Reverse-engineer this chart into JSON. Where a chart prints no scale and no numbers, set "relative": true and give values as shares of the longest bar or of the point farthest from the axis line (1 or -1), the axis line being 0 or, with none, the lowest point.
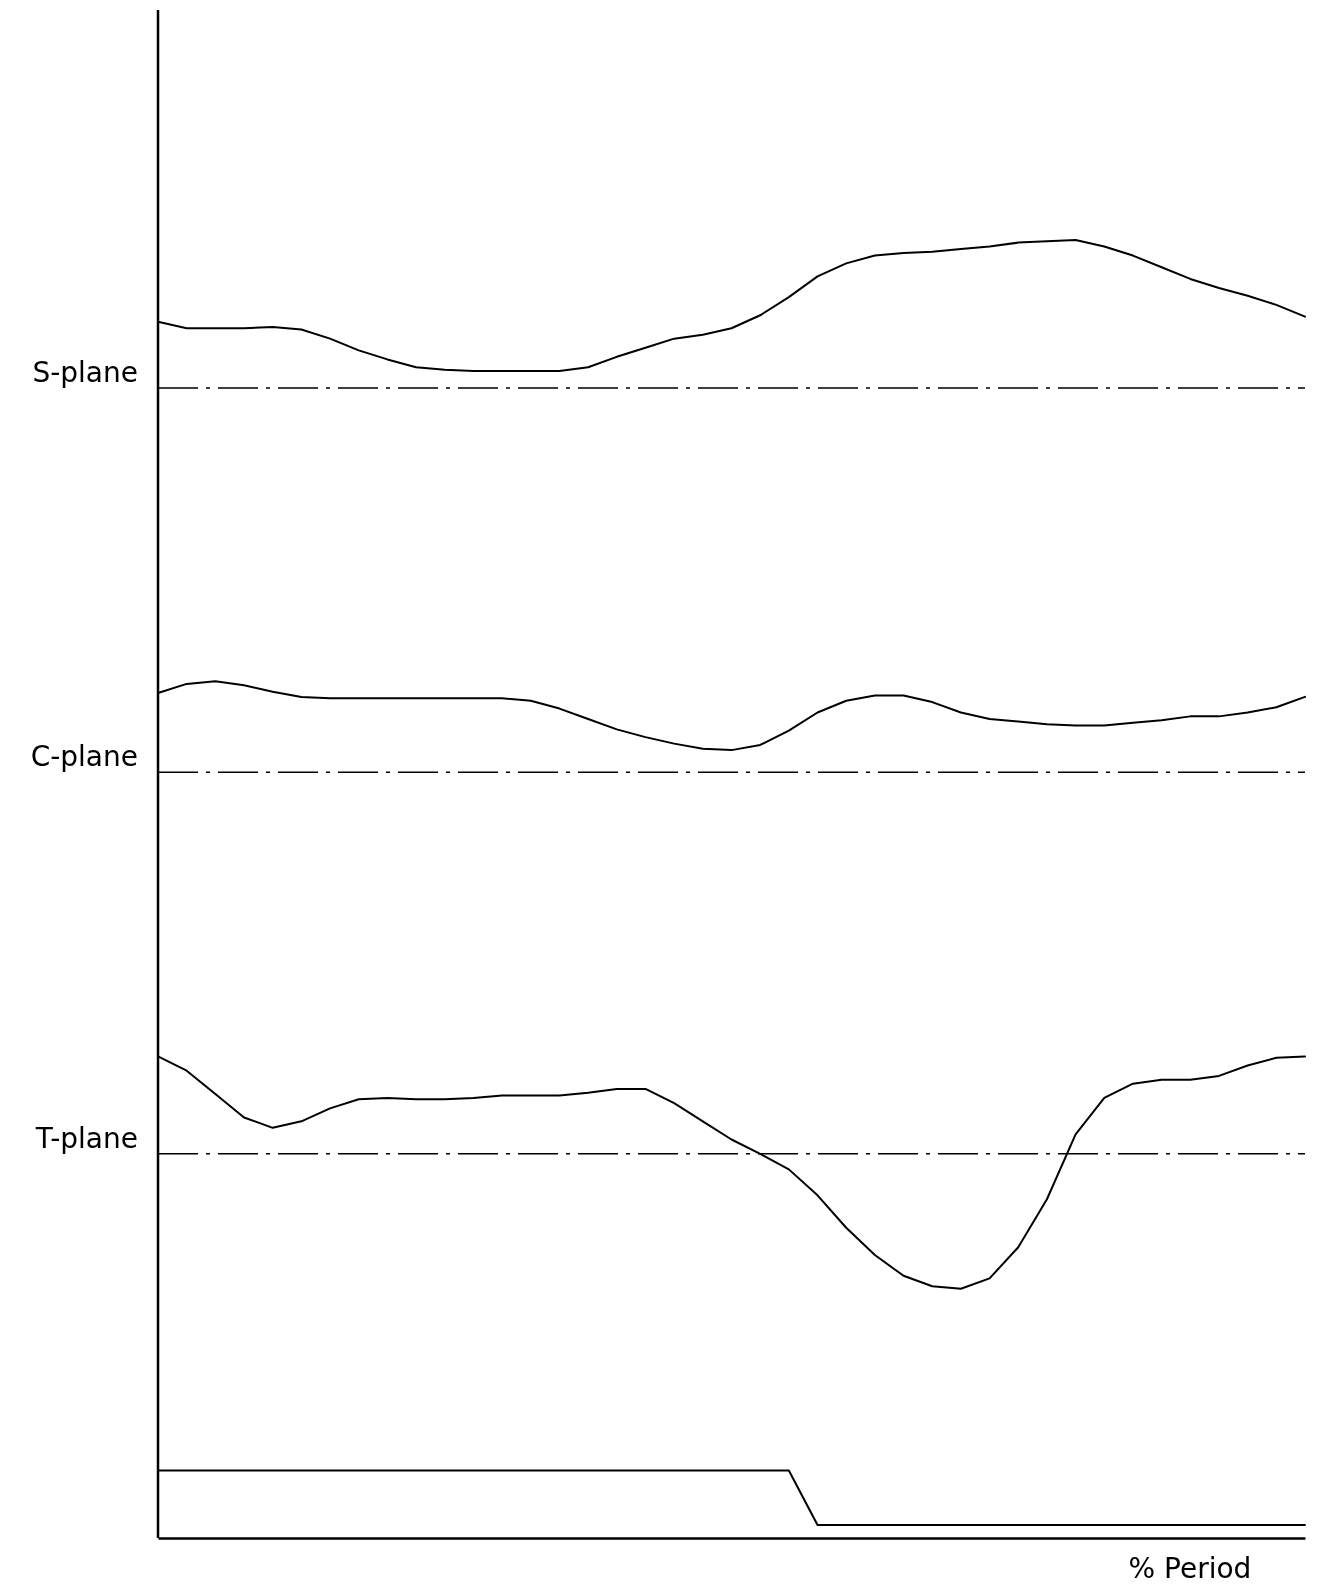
{
  "chart_data": {
    "type": "line",
    "relative": true,
    "xlabel": "% Period",
    "categories": [
      null,
      null,
      null,
      null,
      null,
      null,
      null,
      null,
      null,
      null,
      null,
      null,
      null,
      null,
      null,
      null,
      null,
      null,
      null,
      null,
      null,
      null,
      null,
      null,
      null,
      null,
      null,
      null,
      null,
      null,
      null,
      null,
      null,
      null,
      null,
      null,
      null,
      null,
      null,
      null,
      null
    ],
    "series": [
      {
        "color": "#000000",
        "values": [
          0.937,
          0.932,
          0.932,
          0.932,
          0.933,
          0.931,
          0.924,
          0.915,
          0.908,
          0.902,
          0.9,
          0.899,
          0.899,
          0.899,
          0.899,
          0.902,
          0.91,
          0.917,
          0.924,
          0.927,
          0.932,
          0.942,
          0.956,
          0.972,
          0.982,
          0.988,
          0.99,
          0.991,
          0.993,
          0.995,
          0.998,
          0.999,
          1.0,
          0.995,
          0.988,
          0.979,
          0.97,
          0.963,
          0.957,
          0.95,
          0.941
        ]
      },
      {
        "color": "#000000",
        "values": [
          0.651,
          0.658,
          0.66,
          0.657,
          0.652,
          0.648,
          0.647,
          0.647,
          0.647,
          0.647,
          0.647,
          0.647,
          0.647,
          0.645,
          0.639,
          0.631,
          0.623,
          0.617,
          0.612,
          0.608,
          0.607,
          0.611,
          0.622,
          0.636,
          0.645,
          0.649,
          0.649,
          0.644,
          0.636,
          0.631,
          0.629,
          0.627,
          0.626,
          0.626,
          0.628,
          0.63,
          0.633,
          0.633,
          0.636,
          0.64,
          0.648
        ]
      },
      {
        "color": "#000000",
        "values": [
          0.371,
          0.36,
          0.342,
          0.324,
          0.316,
          0.321,
          0.331,
          0.338,
          0.339,
          0.338,
          0.338,
          0.339,
          0.341,
          0.341,
          0.341,
          0.343,
          0.346,
          0.346,
          0.335,
          0.321,
          0.307,
          0.296,
          0.284,
          0.264,
          0.239,
          0.218,
          0.202,
          0.194,
          0.192,
          0.2,
          0.224,
          0.261,
          0.311,
          0.339,
          0.35,
          0.353,
          0.353,
          0.356,
          0.364,
          0.37,
          0.371
        ]
      },
      {
        "color": "#000000",
        "values": [
          0.052,
          0.052,
          0.052,
          0.052,
          0.052,
          0.052,
          0.052,
          0.052,
          0.052,
          0.052,
          0.052,
          0.052,
          0.052,
          0.052,
          0.052,
          0.052,
          0.052,
          0.052,
          0.052,
          0.052,
          0.052,
          0.052,
          0.052,
          0.01,
          0.01,
          0.01,
          0.01,
          0.01,
          0.01,
          0.01,
          0.01,
          0.01,
          0.01,
          0.01,
          0.01,
          0.01,
          0.01,
          0.01,
          0.01,
          0.01,
          0.01
        ]
      }
    ],
    "ref_lines": [
      {
        "axis": "y",
        "value": 0.886,
        "label": "S-plane",
        "line_style": "dashed"
      },
      {
        "axis": "y",
        "value": 0.59,
        "label": "C-plane",
        "line_style": "dashed"
      },
      {
        "axis": "y",
        "value": 0.296,
        "label": "T-plane",
        "line_style": "dashed"
      }
    ]
  }
}
